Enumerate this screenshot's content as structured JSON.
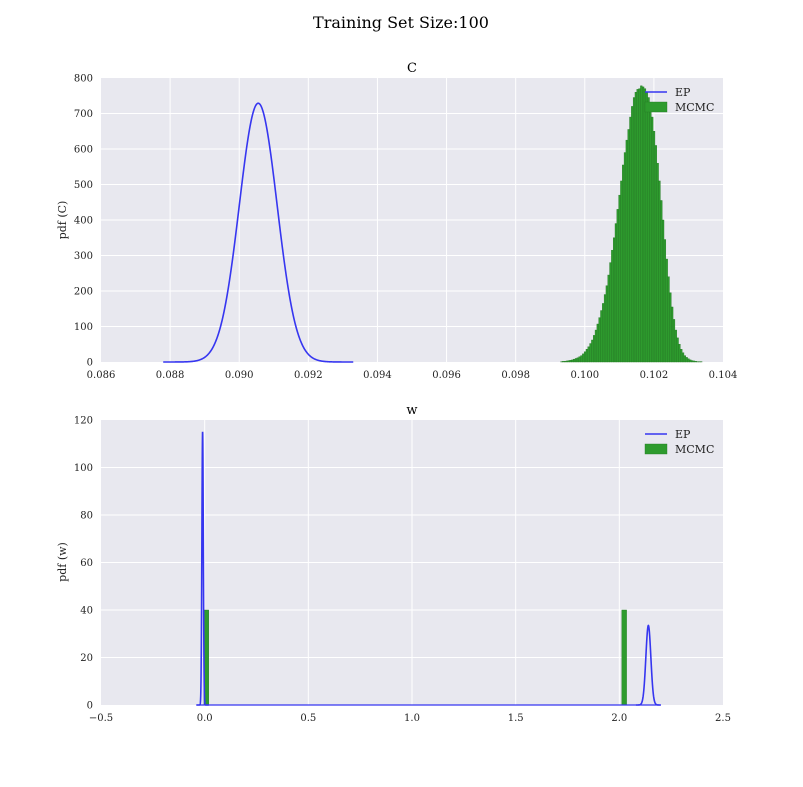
{
  "figure": {
    "suptitle": "Training Set Size:100"
  },
  "colors": {
    "ep": "#3636f0",
    "mcmc": "#2e9b2e",
    "mcmc_edge": "#237a23",
    "bg": "#e8e8ef",
    "grid": "#ffffff"
  },
  "chart_data": [
    {
      "type": "line+histogram",
      "title": "C",
      "xlabel": "",
      "ylabel": "pdf (C)",
      "xlim": [
        0.086,
        0.104
      ],
      "ylim": [
        0,
        800
      ],
      "xticks": [
        "0.086",
        "0.088",
        "0.090",
        "0.092",
        "0.094",
        "0.096",
        "0.098",
        "0.100",
        "0.102",
        "0.104"
      ],
      "yticks": [
        "0",
        "100",
        "200",
        "300",
        "400",
        "500",
        "600",
        "700",
        "800"
      ],
      "grid": true,
      "legend_position": "top-right",
      "series": [
        {
          "name": "EP",
          "kind": "line",
          "gaussian": {
            "mean": 0.09055,
            "std": 0.000547,
            "peak": 729
          },
          "x_range": [
            0.0878,
            0.0933
          ]
        },
        {
          "name": "MCMC",
          "kind": "histogram",
          "bin_start": 0.0993,
          "bin_width": 5.25e-05,
          "values": [
            1,
            2,
            2,
            3,
            4,
            5,
            6,
            8,
            10,
            12,
            15,
            18,
            23,
            29,
            36,
            43,
            52,
            62,
            75,
            90,
            107,
            125,
            145,
            165,
            190,
            215,
            245,
            280,
            315,
            350,
            390,
            430,
            470,
            510,
            555,
            590,
            625,
            655,
            690,
            720,
            745,
            760,
            768,
            770,
            778,
            775,
            770,
            760,
            745,
            720,
            690,
            650,
            610,
            560,
            510,
            455,
            400,
            345,
            290,
            240,
            195,
            155,
            120,
            90,
            68,
            50,
            36,
            26,
            18,
            13,
            9,
            6,
            4,
            3,
            2,
            1,
            1,
            1,
            0,
            0
          ]
        }
      ]
    },
    {
      "type": "line+histogram",
      "title": "w",
      "xlabel": "",
      "ylabel": "pdf (w)",
      "xlim": [
        -0.5,
        2.5
      ],
      "ylim": [
        0,
        120
      ],
      "xticks": [
        "−0.5",
        "0.0",
        "0.5",
        "1.0",
        "1.5",
        "2.0",
        "2.5"
      ],
      "yticks": [
        "0",
        "20",
        "40",
        "60",
        "80",
        "100",
        "120"
      ],
      "grid": true,
      "legend_position": "top-right",
      "series": [
        {
          "name": "EP",
          "kind": "line",
          "peaks": [
            {
              "mean": -0.01,
              "std": 0.0035,
              "peak": 115,
              "x_range": [
                -0.04,
                0.02
              ]
            },
            {
              "mean": 2.14,
              "std": 0.012,
              "peak": 33.5,
              "x_range": [
                2.08,
                2.2
              ]
            }
          ]
        },
        {
          "name": "MCMC",
          "kind": "histogram",
          "bars": [
            {
              "x0": -0.0035,
              "x1": 0.0195,
              "value": 40
            },
            {
              "x0": 2.012,
              "x1": 2.035,
              "value": 40
            }
          ]
        }
      ]
    }
  ]
}
